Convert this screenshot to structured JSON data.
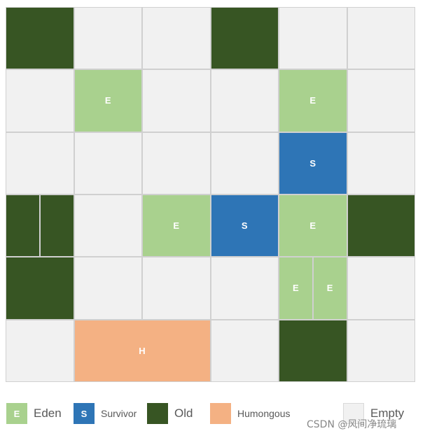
{
  "region_grid": {
    "rows": 6,
    "cols": 6,
    "regions": [
      {
        "row": 0,
        "col": 0,
        "type": "old",
        "label": ""
      },
      {
        "row": 0,
        "col": 1,
        "type": "empty",
        "label": ""
      },
      {
        "row": 0,
        "col": 2,
        "type": "empty",
        "label": ""
      },
      {
        "row": 0,
        "col": 3,
        "type": "old",
        "label": ""
      },
      {
        "row": 0,
        "col": 4,
        "type": "empty",
        "label": ""
      },
      {
        "row": 0,
        "col": 5,
        "type": "empty",
        "label": ""
      },
      {
        "row": 1,
        "col": 0,
        "type": "empty",
        "label": ""
      },
      {
        "row": 1,
        "col": 1,
        "type": "eden",
        "label": "E"
      },
      {
        "row": 1,
        "col": 2,
        "type": "empty",
        "label": ""
      },
      {
        "row": 1,
        "col": 3,
        "type": "empty",
        "label": ""
      },
      {
        "row": 1,
        "col": 4,
        "type": "eden",
        "label": "E"
      },
      {
        "row": 1,
        "col": 5,
        "type": "empty",
        "label": ""
      },
      {
        "row": 2,
        "col": 0,
        "type": "empty",
        "label": ""
      },
      {
        "row": 2,
        "col": 1,
        "type": "empty",
        "label": ""
      },
      {
        "row": 2,
        "col": 2,
        "type": "empty",
        "label": ""
      },
      {
        "row": 2,
        "col": 3,
        "type": "empty",
        "label": ""
      },
      {
        "row": 2,
        "col": 4,
        "type": "survivor",
        "label": "S"
      },
      {
        "row": 2,
        "col": 5,
        "type": "empty",
        "label": ""
      },
      {
        "row": 3,
        "col": 0,
        "type": "old",
        "label": "",
        "split": 2
      },
      {
        "row": 3,
        "col": 1,
        "type": "empty",
        "label": ""
      },
      {
        "row": 3,
        "col": 2,
        "type": "eden",
        "label": "E"
      },
      {
        "row": 3,
        "col": 3,
        "type": "survivor",
        "label": "S"
      },
      {
        "row": 3,
        "col": 4,
        "type": "eden",
        "label": "E"
      },
      {
        "row": 3,
        "col": 5,
        "type": "old",
        "label": ""
      },
      {
        "row": 4,
        "col": 0,
        "type": "old",
        "label": ""
      },
      {
        "row": 4,
        "col": 1,
        "type": "empty",
        "label": ""
      },
      {
        "row": 4,
        "col": 2,
        "type": "empty",
        "label": ""
      },
      {
        "row": 4,
        "col": 3,
        "type": "empty",
        "label": ""
      },
      {
        "row": 4,
        "col": 4,
        "type": "eden",
        "label": "E",
        "split": 2
      },
      {
        "row": 4,
        "col": 5,
        "type": "empty",
        "label": ""
      },
      {
        "row": 5,
        "col": 0,
        "type": "empty",
        "label": ""
      },
      {
        "row": 5,
        "col": 1,
        "type": "humongous",
        "label": "H",
        "colspan": 2
      },
      {
        "row": 5,
        "col": 3,
        "type": "empty",
        "label": ""
      },
      {
        "row": 5,
        "col": 4,
        "type": "old",
        "label": ""
      },
      {
        "row": 5,
        "col": 5,
        "type": "empty",
        "label": ""
      }
    ]
  },
  "colors": {
    "eden": "#a9d18e",
    "survivor": "#2e75b6",
    "old": "#375523",
    "humongous": "#f4b183",
    "empty": "#f1f1f1"
  },
  "legend": {
    "eden": {
      "swatch_label": "E",
      "label": "Eden"
    },
    "survivor": {
      "swatch_label": "S",
      "label": "Survivor"
    },
    "old": {
      "swatch_label": "",
      "label": "Old"
    },
    "humongous": {
      "swatch_label": "",
      "label": "Humongous"
    },
    "empty": {
      "swatch_label": "",
      "label": "Empty"
    }
  },
  "watermark": "CSDN @风间净琉璃"
}
